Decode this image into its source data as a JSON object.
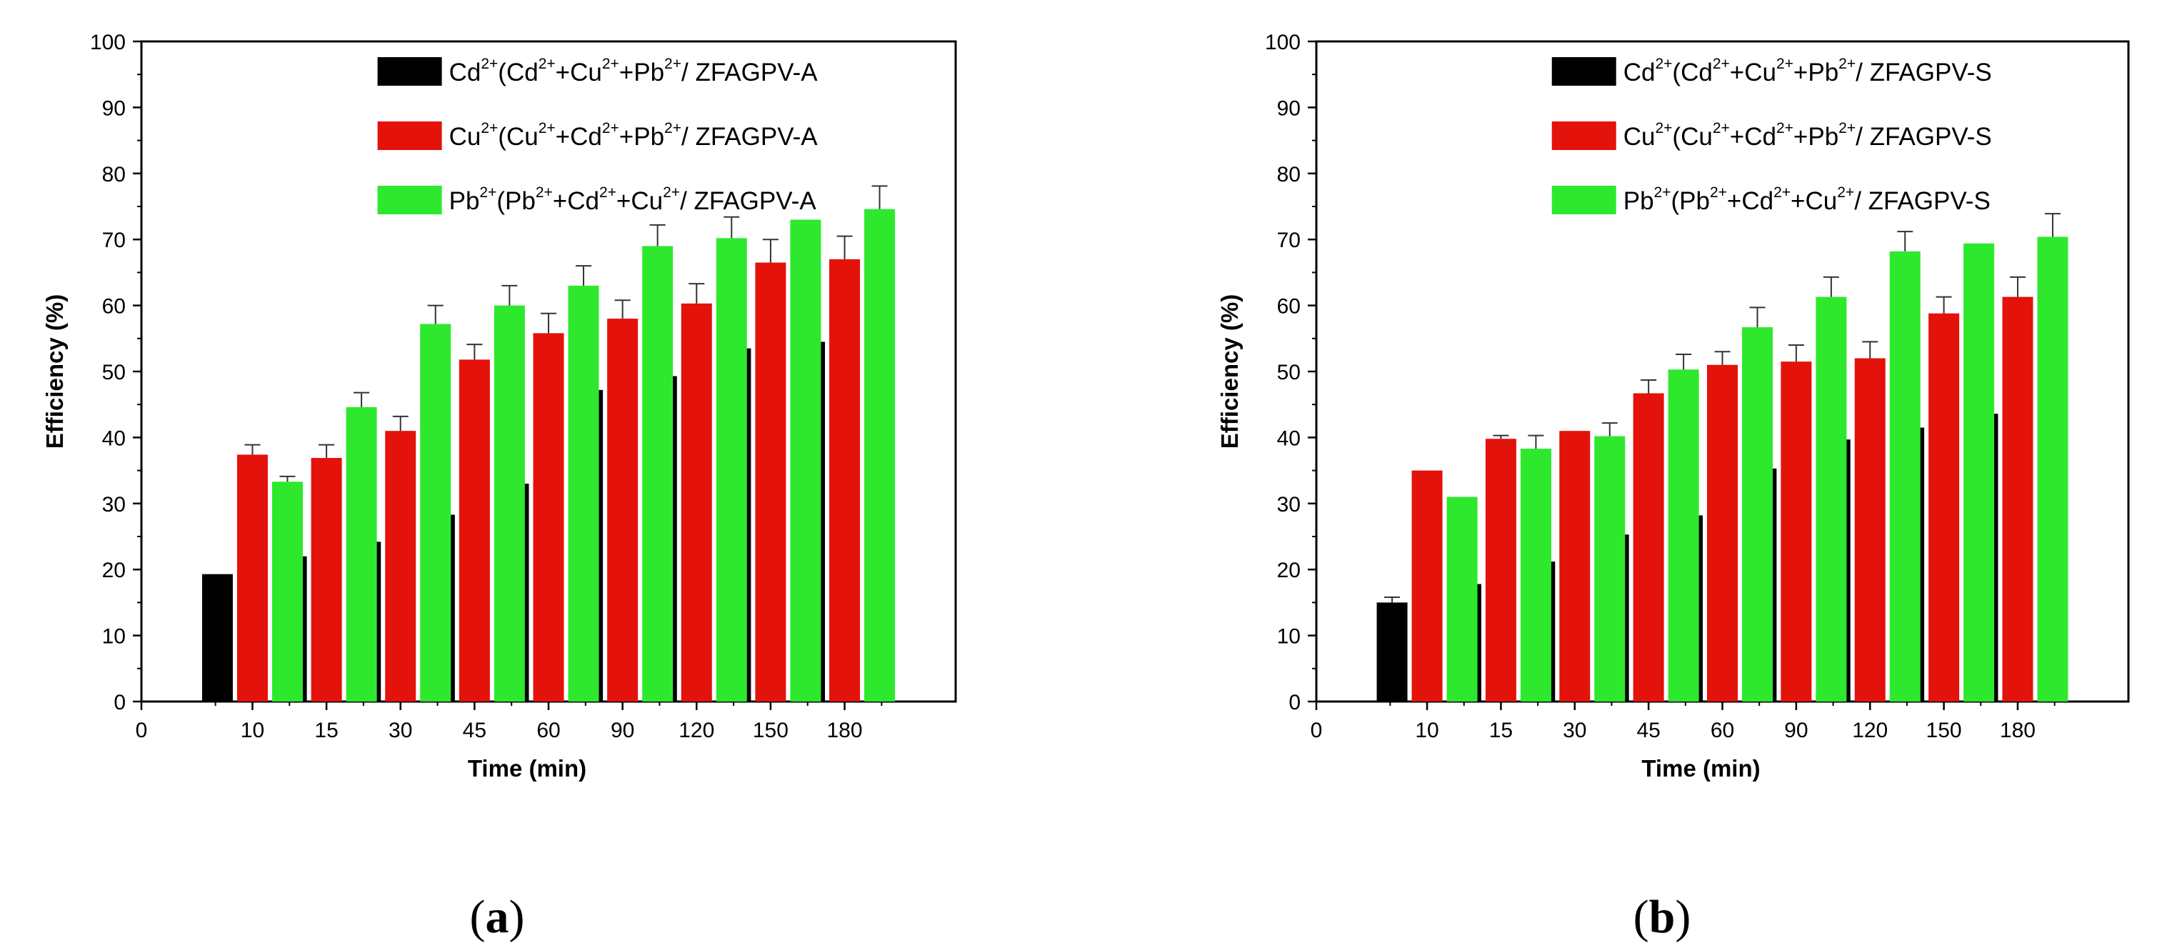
{
  "chart_data": [
    {
      "type": "bar",
      "panel": "a",
      "panel_label": {
        "open": "(",
        "letter": "a",
        "close": ")"
      },
      "xlabel": "Time (min)",
      "ylabel": "Efficiency (%)",
      "ylim": [
        0,
        100
      ],
      "y_ticks": [
        0,
        10,
        20,
        30,
        40,
        50,
        60,
        70,
        80,
        90,
        100
      ],
      "x_origin_label": "0",
      "categories": [
        "10",
        "15",
        "30",
        "45",
        "60",
        "90",
        "120",
        "150",
        "180"
      ],
      "legend_position": "top-right",
      "series": [
        {
          "name": "Cd2+(Cd2++Cu2++Pb2+/ ZFAGPV-A",
          "legend_parts": [
            {
              "t": "Cd",
              "sup": false
            },
            {
              "t": "2+",
              "sup": true
            },
            {
              "t": "(Cd",
              "sup": false
            },
            {
              "t": "2+",
              "sup": true
            },
            {
              "t": "+Cu",
              "sup": false
            },
            {
              "t": "2+",
              "sup": true
            },
            {
              "t": "+Pb",
              "sup": false
            },
            {
              "t": "2+",
              "sup": true
            },
            {
              "t": "/ ZFAGPV-A",
              "sup": false
            }
          ],
          "color": "#000000",
          "values": [
            19.3,
            22.0,
            24.2,
            28.3,
            33.0,
            47.2,
            49.3,
            53.5,
            54.5
          ],
          "errors": [
            0,
            1.0,
            0,
            0,
            1.5,
            2.5,
            2.0,
            2.5,
            2.5
          ]
        },
        {
          "name": "Cu2+(Cu2++Cd2++Pb2+/ ZFAGPV-A",
          "legend_parts": [
            {
              "t": "Cu",
              "sup": false
            },
            {
              "t": "2+",
              "sup": true
            },
            {
              "t": "(Cu",
              "sup": false
            },
            {
              "t": "2+",
              "sup": true
            },
            {
              "t": "+Cd",
              "sup": false
            },
            {
              "t": "2+",
              "sup": true
            },
            {
              "t": "+Pb",
              "sup": false
            },
            {
              "t": "2+",
              "sup": true
            },
            {
              "t": "/ ZFAGPV-A",
              "sup": false
            }
          ],
          "color": "#e3120b",
          "values": [
            37.4,
            36.9,
            41.0,
            51.8,
            55.8,
            58.0,
            60.3,
            66.5,
            67.0
          ],
          "errors": [
            1.5,
            2.0,
            2.2,
            2.3,
            3.0,
            2.8,
            3.0,
            3.5,
            3.5
          ]
        },
        {
          "name": "Pb2+(Pb2++Cd2++Cu2+/ ZFAGPV-A",
          "legend_parts": [
            {
              "t": "Pb",
              "sup": false
            },
            {
              "t": "2+",
              "sup": true
            },
            {
              "t": "(Pb",
              "sup": false
            },
            {
              "t": "2+",
              "sup": true
            },
            {
              "t": "+Cd",
              "sup": false
            },
            {
              "t": "2+",
              "sup": true
            },
            {
              "t": "+Cu",
              "sup": false
            },
            {
              "t": "2+",
              "sup": true
            },
            {
              "t": "/ ZFAGPV-A",
              "sup": false
            }
          ],
          "color": "#2ee82e",
          "values": [
            33.3,
            44.6,
            57.2,
            60.0,
            63.0,
            69.0,
            70.2,
            73.0,
            74.6
          ],
          "errors": [
            0.8,
            2.2,
            2.8,
            3.0,
            3.0,
            3.2,
            3.2,
            0,
            3.5
          ]
        }
      ]
    },
    {
      "type": "bar",
      "panel": "b",
      "panel_label": {
        "open": "(",
        "letter": "b",
        "close": ")"
      },
      "xlabel": "Time (min)",
      "ylabel": "Efficiency (%)",
      "ylim": [
        0,
        100
      ],
      "y_ticks": [
        0,
        10,
        20,
        30,
        40,
        50,
        60,
        70,
        80,
        90,
        100
      ],
      "x_origin_label": "0",
      "categories": [
        "10",
        "15",
        "30",
        "45",
        "60",
        "90",
        "120",
        "150",
        "180"
      ],
      "legend_position": "top-right",
      "series": [
        {
          "name": "Cd2+(Cd2++Cu2++Pb2+/ ZFAGPV-S",
          "legend_parts": [
            {
              "t": "Cd",
              "sup": false
            },
            {
              "t": "2+",
              "sup": true
            },
            {
              "t": "(Cd",
              "sup": false
            },
            {
              "t": "2+",
              "sup": true
            },
            {
              "t": "+Cu",
              "sup": false
            },
            {
              "t": "2+",
              "sup": true
            },
            {
              "t": "+Pb",
              "sup": false
            },
            {
              "t": "2+",
              "sup": true
            },
            {
              "t": "/ ZFAGPV-S",
              "sup": false
            }
          ],
          "color": "#000000",
          "values": [
            15.0,
            17.8,
            21.2,
            25.3,
            28.2,
            35.3,
            39.7,
            41.5,
            43.6
          ],
          "errors": [
            0.8,
            1.0,
            0,
            1.2,
            1.5,
            1.8,
            2.0,
            2.0,
            0
          ]
        },
        {
          "name": "Cu2+(Cu2++Cd2++Pb2+/ ZFAGPV-S",
          "legend_parts": [
            {
              "t": "Cu",
              "sup": false
            },
            {
              "t": "2+",
              "sup": true
            },
            {
              "t": "(Cu",
              "sup": false
            },
            {
              "t": "2+",
              "sup": true
            },
            {
              "t": "+Cd",
              "sup": false
            },
            {
              "t": "2+",
              "sup": true
            },
            {
              "t": "+Pb",
              "sup": false
            },
            {
              "t": "2+",
              "sup": true
            },
            {
              "t": "/ ZFAGPV-S",
              "sup": false
            }
          ],
          "color": "#e3120b",
          "values": [
            35.0,
            39.8,
            41.0,
            46.7,
            51.0,
            51.5,
            52.0,
            58.8,
            61.3
          ],
          "errors": [
            0,
            0.5,
            0,
            2.0,
            2.0,
            2.5,
            2.5,
            2.5,
            3.0
          ]
        },
        {
          "name": "Pb2+(Pb2++Cd2++Cu2+/ ZFAGPV-S",
          "legend_parts": [
            {
              "t": "Pb",
              "sup": false
            },
            {
              "t": "2+",
              "sup": true
            },
            {
              "t": "(Pb",
              "sup": false
            },
            {
              "t": "2+",
              "sup": true
            },
            {
              "t": "+Cd",
              "sup": false
            },
            {
              "t": "2+",
              "sup": true
            },
            {
              "t": "+Cu",
              "sup": false
            },
            {
              "t": "2+",
              "sup": true
            },
            {
              "t": "/ ZFAGPV-S",
              "sup": false
            }
          ],
          "color": "#2ee82e",
          "values": [
            31.0,
            38.3,
            40.2,
            50.3,
            56.7,
            61.3,
            68.2,
            69.4,
            70.4
          ],
          "errors": [
            0,
            2.0,
            2.0,
            2.3,
            3.0,
            3.0,
            3.0,
            0,
            3.5
          ]
        }
      ]
    }
  ]
}
